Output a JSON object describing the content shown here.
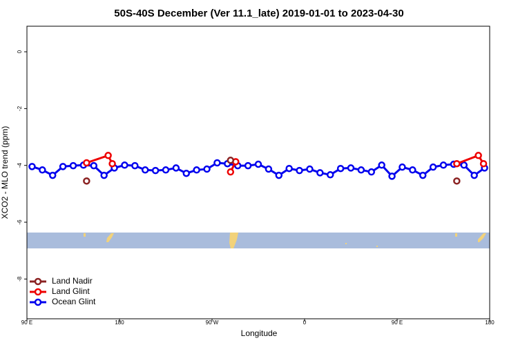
{
  "chart_data": {
    "type": "line",
    "title": "50S-40S December (Ver 11.1_late)   2019-01-01 to 2023-04-30",
    "x_label": "Longitude",
    "y_label": "XCO2 - MLO trend (ppm)",
    "xlim": [
      90,
      540
    ],
    "ylim": [
      -9.4,
      0.9
    ],
    "xticks": [
      {
        "value": 90,
        "label": "90 E"
      },
      180,
      {
        "value": 270,
        "label": "90 W"
      },
      {
        "value": 360,
        "label": "0"
      },
      {
        "value": 450,
        "label": "90 E"
      },
      {
        "value": 540,
        "label": "180"
      }
    ],
    "yticks": [
      0,
      -2,
      -4,
      -6,
      -8
    ],
    "legend": "bottom-left",
    "series": [
      {
        "name": "Land Nadir",
        "color": "#8b2323",
        "x": [
          148,
          null,
          288,
          null,
          508
        ],
        "values": [
          -4.55,
          null,
          -3.82,
          null,
          -4.55
        ]
      },
      {
        "name": "Land Glint",
        "color": "#ee0000",
        "x": [
          148,
          169,
          173,
          null,
          288,
          293,
          null,
          508,
          529,
          534
        ],
        "values": [
          -3.91,
          -3.65,
          -3.94,
          null,
          -4.23,
          -3.87,
          null,
          -3.94,
          -3.65,
          -3.94
        ]
      },
      {
        "name": "Ocean Glint",
        "color": "#0000ee",
        "x": [
          95,
          105,
          115,
          125,
          135,
          145,
          155,
          165,
          175,
          185,
          195,
          205,
          215,
          225,
          235,
          245,
          255,
          265,
          275,
          285,
          295,
          305,
          315,
          325,
          335,
          345,
          355,
          365,
          375,
          385,
          395,
          405,
          415,
          425,
          435,
          445,
          455,
          465,
          475,
          485,
          495,
          505,
          515,
          525,
          535
        ],
        "values": [
          -4.04,
          -4.16,
          -4.35,
          -4.04,
          -4.01,
          -3.99,
          -4.01,
          -4.35,
          -4.09,
          -3.99,
          -4.01,
          -4.16,
          -4.18,
          -4.16,
          -4.09,
          -4.28,
          -4.16,
          -4.13,
          -3.91,
          -3.94,
          -4.01,
          -4.01,
          -3.96,
          -4.13,
          -4.35,
          -4.11,
          -4.18,
          -4.13,
          -4.26,
          -4.33,
          -4.11,
          -4.09,
          -4.16,
          -4.23,
          -3.99,
          -4.38,
          -4.06,
          -4.16,
          -4.35,
          -4.06,
          -3.99,
          -3.96,
          -3.99,
          -4.35,
          -4.09
        ]
      }
    ]
  }
}
